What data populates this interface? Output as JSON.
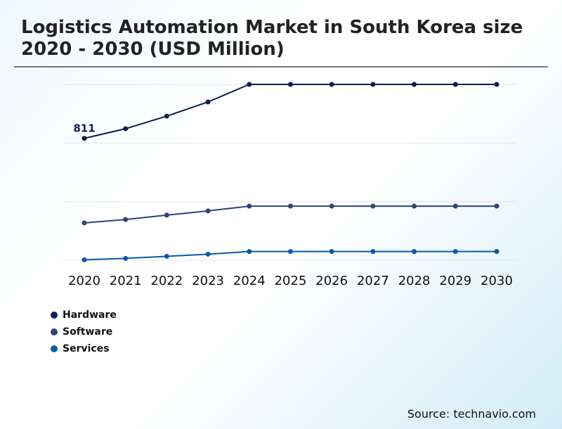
{
  "chart_data": {
    "type": "line",
    "title": "Logistics Automation Market in South Korea size 2020 - 2030 (USD Million)",
    "xlabel": "",
    "ylabel": "",
    "x": [
      "2020",
      "2021",
      "2022",
      "2023",
      "2024",
      "2025",
      "2026",
      "2027",
      "2028",
      "2029",
      "2030"
    ],
    "ylim": [
      0,
      1170
    ],
    "grid": true,
    "legend_position": "bottom-left",
    "series": [
      {
        "name": "Hardware",
        "color": "#0b1f4b",
        "values": [
          811,
          875,
          959,
          1053,
          1170,
          1170,
          1170,
          1170,
          1170,
          1170,
          1170
        ]
      },
      {
        "name": "Software",
        "color": "#2e4479",
        "values": [
          248,
          271,
          300,
          328,
          360,
          360,
          360,
          360,
          360,
          360,
          360
        ]
      },
      {
        "name": "Services",
        "color": "#0a5aa8",
        "values": [
          3,
          12,
          26,
          40,
          58,
          58,
          58,
          58,
          58,
          58,
          58
        ]
      }
    ],
    "annotations": [
      {
        "series": "Hardware",
        "x": "2020",
        "text": "811"
      }
    ]
  },
  "source": "Source: technavio.com"
}
